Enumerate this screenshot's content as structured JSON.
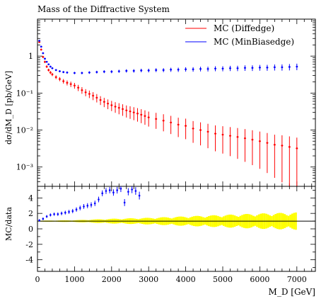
{
  "chart_data": [
    {
      "type": "scatter",
      "title": "Mass of the Diffractive System",
      "xlabel": "M_D [GeV]",
      "ylabel": "dσ/dM_D [pb/GeV]",
      "yscale": "log",
      "xlim": [
        0,
        7500
      ],
      "ylim": [
        0.0003,
        10
      ],
      "yticks": [
        {
          "value": 0.001,
          "label": "10⁻³"
        },
        {
          "value": 0.01,
          "label": "10⁻²"
        },
        {
          "value": 0.1,
          "label": "10⁻¹"
        },
        {
          "value": 1,
          "label": "1"
        }
      ],
      "legend_position": "top-right",
      "series": [
        {
          "name": "MC (Diffedge)",
          "color": "#ff0000",
          "points": [
            [
              50,
              2.4
            ],
            [
              100,
              1.5
            ],
            [
              150,
              0.95
            ],
            [
              200,
              0.7
            ],
            [
              250,
              0.52
            ],
            [
              300,
              0.42
            ],
            [
              350,
              0.36
            ],
            [
              400,
              0.32
            ],
            [
              500,
              0.27
            ],
            [
              600,
              0.24
            ],
            [
              700,
              0.21
            ],
            [
              800,
              0.19
            ],
            [
              900,
              0.175
            ],
            [
              1000,
              0.16
            ],
            [
              1100,
              0.14
            ],
            [
              1200,
              0.12
            ],
            [
              1300,
              0.105
            ],
            [
              1400,
              0.095
            ],
            [
              1500,
              0.085
            ],
            [
              1600,
              0.075
            ],
            [
              1700,
              0.065
            ],
            [
              1800,
              0.058
            ],
            [
              1900,
              0.052
            ],
            [
              2000,
              0.047
            ],
            [
              2100,
              0.043
            ],
            [
              2200,
              0.04
            ],
            [
              2300,
              0.037
            ],
            [
              2400,
              0.034
            ],
            [
              2500,
              0.032
            ],
            [
              2600,
              0.03
            ],
            [
              2700,
              0.028
            ],
            [
              2800,
              0.026
            ],
            [
              2900,
              0.024
            ],
            [
              3000,
              0.022
            ],
            [
              3200,
              0.02
            ],
            [
              3400,
              0.018
            ],
            [
              3600,
              0.016
            ],
            [
              3800,
              0.014
            ],
            [
              4000,
              0.013
            ],
            [
              4200,
              0.011
            ],
            [
              4400,
              0.01
            ],
            [
              4600,
              0.009
            ],
            [
              4800,
              0.008
            ],
            [
              5000,
              0.0075
            ],
            [
              5200,
              0.007
            ],
            [
              5400,
              0.0065
            ],
            [
              5600,
              0.006
            ],
            [
              5800,
              0.0055
            ],
            [
              6000,
              0.005
            ],
            [
              6200,
              0.0045
            ],
            [
              6400,
              0.004
            ],
            [
              6600,
              0.0038
            ],
            [
              6800,
              0.0035
            ],
            [
              7000,
              0.0032
            ]
          ]
        },
        {
          "name": "MC (MinBiasedge)",
          "color": "#0000ff",
          "points": [
            [
              50,
              2.6
            ],
            [
              100,
              1.8
            ],
            [
              150,
              1.2
            ],
            [
              200,
              0.85
            ],
            [
              250,
              0.7
            ],
            [
              300,
              0.6
            ],
            [
              350,
              0.52
            ],
            [
              400,
              0.47
            ],
            [
              500,
              0.42
            ],
            [
              600,
              0.39
            ],
            [
              700,
              0.37
            ],
            [
              800,
              0.36
            ],
            [
              1000,
              0.35
            ],
            [
              1200,
              0.35
            ],
            [
              1400,
              0.36
            ],
            [
              1600,
              0.37
            ],
            [
              1800,
              0.38
            ],
            [
              2000,
              0.38
            ],
            [
              2200,
              0.39
            ],
            [
              2400,
              0.4
            ],
            [
              2600,
              0.4
            ],
            [
              2800,
              0.41
            ],
            [
              3000,
              0.41
            ],
            [
              3200,
              0.42
            ],
            [
              3400,
              0.42
            ],
            [
              3600,
              0.43
            ],
            [
              3800,
              0.43
            ],
            [
              4000,
              0.44
            ],
            [
              4200,
              0.44
            ],
            [
              4400,
              0.45
            ],
            [
              4600,
              0.45
            ],
            [
              4800,
              0.46
            ],
            [
              5000,
              0.46
            ],
            [
              5200,
              0.47
            ],
            [
              5400,
              0.47
            ],
            [
              5600,
              0.48
            ],
            [
              5800,
              0.48
            ],
            [
              6000,
              0.49
            ],
            [
              6200,
              0.49
            ],
            [
              6400,
              0.5
            ],
            [
              6600,
              0.5
            ],
            [
              6800,
              0.51
            ],
            [
              7000,
              0.52
            ]
          ]
        }
      ]
    },
    {
      "type": "scatter",
      "xlabel": "M_D [GeV]",
      "ylabel": "MC/data",
      "xlim": [
        0,
        7500
      ],
      "ylim": [
        -5.5,
        5.5
      ],
      "xticks": [
        0,
        1000,
        2000,
        3000,
        4000,
        5000,
        6000,
        7000
      ],
      "yticks": [
        -4,
        -2,
        0,
        2,
        4
      ],
      "reference_line": 1,
      "series": [
        {
          "name": "MC (MinBiasedge)",
          "color": "#0000ff",
          "points": [
            [
              50,
              1.1
            ],
            [
              150,
              1.3
            ],
            [
              250,
              1.6
            ],
            [
              350,
              1.8
            ],
            [
              450,
              1.9
            ],
            [
              550,
              1.9
            ],
            [
              650,
              2.0
            ],
            [
              750,
              2.1
            ],
            [
              850,
              2.2
            ],
            [
              950,
              2.3
            ],
            [
              1050,
              2.5
            ],
            [
              1150,
              2.7
            ],
            [
              1250,
              2.9
            ],
            [
              1350,
              3.0
            ],
            [
              1450,
              3.1
            ],
            [
              1550,
              3.3
            ],
            [
              1650,
              3.8
            ],
            [
              1750,
              4.6
            ],
            [
              1850,
              4.9
            ],
            [
              1950,
              5.0
            ],
            [
              2050,
              4.7
            ],
            [
              2150,
              5.0
            ],
            [
              2250,
              5.2
            ],
            [
              2350,
              3.4
            ],
            [
              2450,
              4.8
            ],
            [
              2550,
              5.1
            ],
            [
              2650,
              4.9
            ],
            [
              2750,
              4.3
            ]
          ]
        }
      ],
      "band": {
        "name": "data uncertainty",
        "color": "#ffff00",
        "points": [
          [
            0,
            0.05
          ],
          [
            1000,
            0.1
          ],
          [
            2000,
            0.25
          ],
          [
            3000,
            0.35
          ],
          [
            4000,
            0.5
          ],
          [
            5000,
            0.65
          ],
          [
            6000,
            0.8
          ],
          [
            7000,
            0.9
          ]
        ]
      }
    }
  ]
}
